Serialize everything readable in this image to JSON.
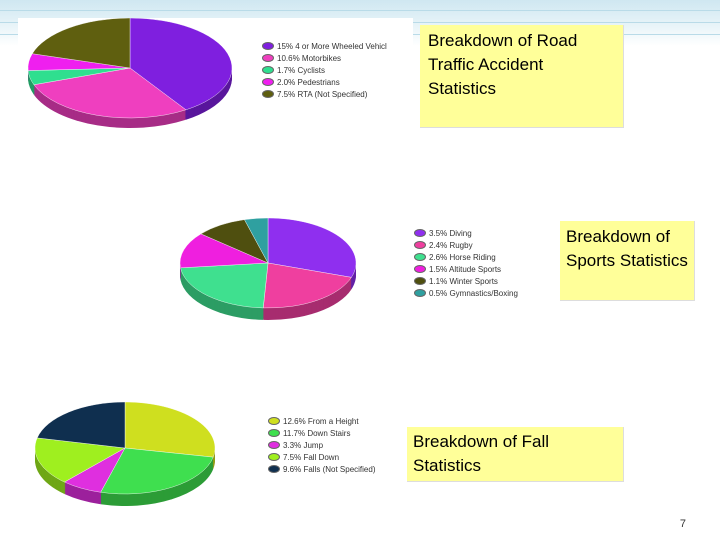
{
  "slide": {
    "page_number": "7",
    "accent_color": "#cfe7f1"
  },
  "callouts": {
    "road": "Breakdown of Road Traffic Accident Statistics",
    "sports": "Breakdown of Sports Statistics",
    "fall": "Breakdown of Fall Statistics"
  },
  "chart_data": [
    {
      "type": "pie",
      "title": "",
      "labels": [
        "15% 4 or More Wheeled Vehicl",
        "10.6% Motorbikes",
        "1.7% Cyclists",
        "2.0% Pedestrians",
        "7.5% RTA (Not Specified)"
      ],
      "values": [
        15,
        10.6,
        1.7,
        2.0,
        7.5
      ],
      "colors": [
        "#7f1fdf",
        "#ef3fbf",
        "#2fdf8f",
        "#ef1fef",
        "#5f5f0f"
      ],
      "legend": "right"
    },
    {
      "type": "pie",
      "title": "",
      "labels": [
        "3.5% Diving",
        "2.4% Rugby",
        "2.6% Horse Riding",
        "1.5% Altitude Sports",
        "1.1% Winter Sports",
        "0.5% Gymnastics/Boxing"
      ],
      "values": [
        3.5,
        2.4,
        2.6,
        1.5,
        1.1,
        0.5
      ],
      "colors": [
        "#8f2fef",
        "#ef3f9f",
        "#3fe08f",
        "#ef1fdf",
        "#4f4f0f",
        "#2fa0a0"
      ],
      "legend": "right"
    },
    {
      "type": "pie",
      "title": "",
      "labels": [
        "12.6% From a Height",
        "11.7% Down Stairs",
        "3.3% Jump",
        "7.5% Fall Down",
        "9.6% Falls (Not Specified)"
      ],
      "values": [
        12.6,
        11.7,
        3.3,
        7.5,
        9.6
      ],
      "colors": [
        "#cfdf1f",
        "#3fdf4f",
        "#df2fdf",
        "#9fef1f",
        "#0f2f4f"
      ],
      "legend": "right"
    }
  ]
}
